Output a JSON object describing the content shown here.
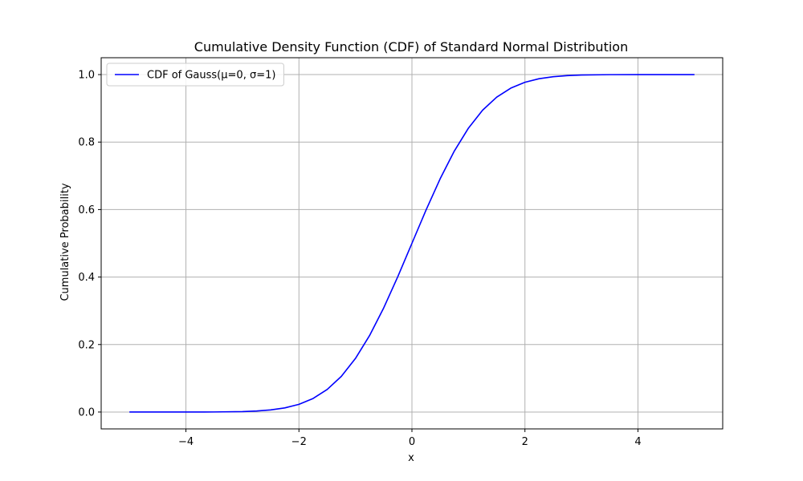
{
  "chart_data": {
    "type": "line",
    "title": "Cumulative Density Function (CDF) of Standard Normal Distribution",
    "xlabel": "x",
    "ylabel": "Cumulative Probability",
    "xlim": [
      -5.5,
      5.5
    ],
    "ylim": [
      -0.05,
      1.05
    ],
    "x_ticks": [
      -4,
      -2,
      0,
      2,
      4
    ],
    "x_tick_labels": [
      "−4",
      "−2",
      "0",
      "2",
      "4"
    ],
    "y_ticks": [
      0.0,
      0.2,
      0.4,
      0.6,
      0.8,
      1.0
    ],
    "y_tick_labels": [
      "0.0",
      "0.2",
      "0.4",
      "0.6",
      "0.8",
      "1.0"
    ],
    "grid": true,
    "legend_position": "top-left",
    "series": [
      {
        "name": "CDF of Gauss(μ=0, σ=1)",
        "color": "#0000ff",
        "x": [
          -5.0,
          -4.5,
          -4.0,
          -3.5,
          -3.0,
          -2.75,
          -2.5,
          -2.25,
          -2.0,
          -1.75,
          -1.5,
          -1.25,
          -1.0,
          -0.75,
          -0.5,
          -0.25,
          0.0,
          0.25,
          0.5,
          0.75,
          1.0,
          1.25,
          1.5,
          1.75,
          2.0,
          2.25,
          2.5,
          2.75,
          3.0,
          3.5,
          4.0,
          4.5,
          5.0
        ],
        "y": [
          0.0,
          0.0,
          0.0,
          0.0002,
          0.0013,
          0.003,
          0.0062,
          0.0122,
          0.0228,
          0.0401,
          0.0668,
          0.1056,
          0.1587,
          0.2266,
          0.3085,
          0.4013,
          0.5,
          0.5987,
          0.6915,
          0.7734,
          0.8413,
          0.8944,
          0.9332,
          0.9599,
          0.9772,
          0.9878,
          0.9938,
          0.997,
          0.9987,
          0.9998,
          1.0,
          1.0,
          1.0
        ]
      }
    ]
  }
}
